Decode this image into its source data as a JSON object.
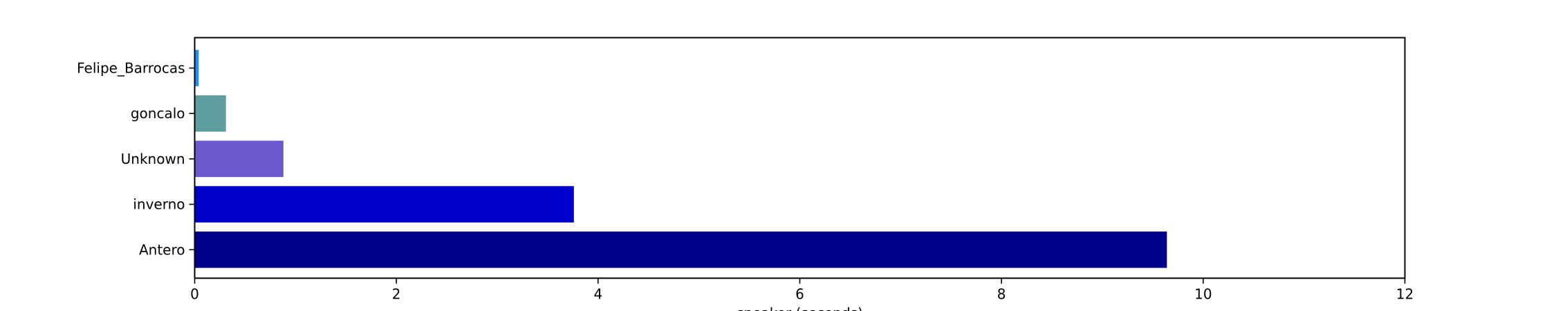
{
  "chart_data": {
    "type": "bar",
    "orientation": "horizontal",
    "categories": [
      "Felipe_Barrocas",
      "goncalo",
      "Unknown",
      "inverno",
      "Antero"
    ],
    "values": [
      0.04,
      0.31,
      0.88,
      3.76,
      9.64
    ],
    "colors": [
      "#1e90ff",
      "#5f9ea0",
      "#6a5acd",
      "#0000cd",
      "#00008b"
    ],
    "xlabel": "speaker (seconds)",
    "ylabel": "",
    "title": "",
    "xlim": [
      0,
      12
    ],
    "xticks": [
      "0",
      "2",
      "4",
      "6",
      "8",
      "10",
      "12"
    ],
    "grid": false,
    "legend": "none"
  }
}
